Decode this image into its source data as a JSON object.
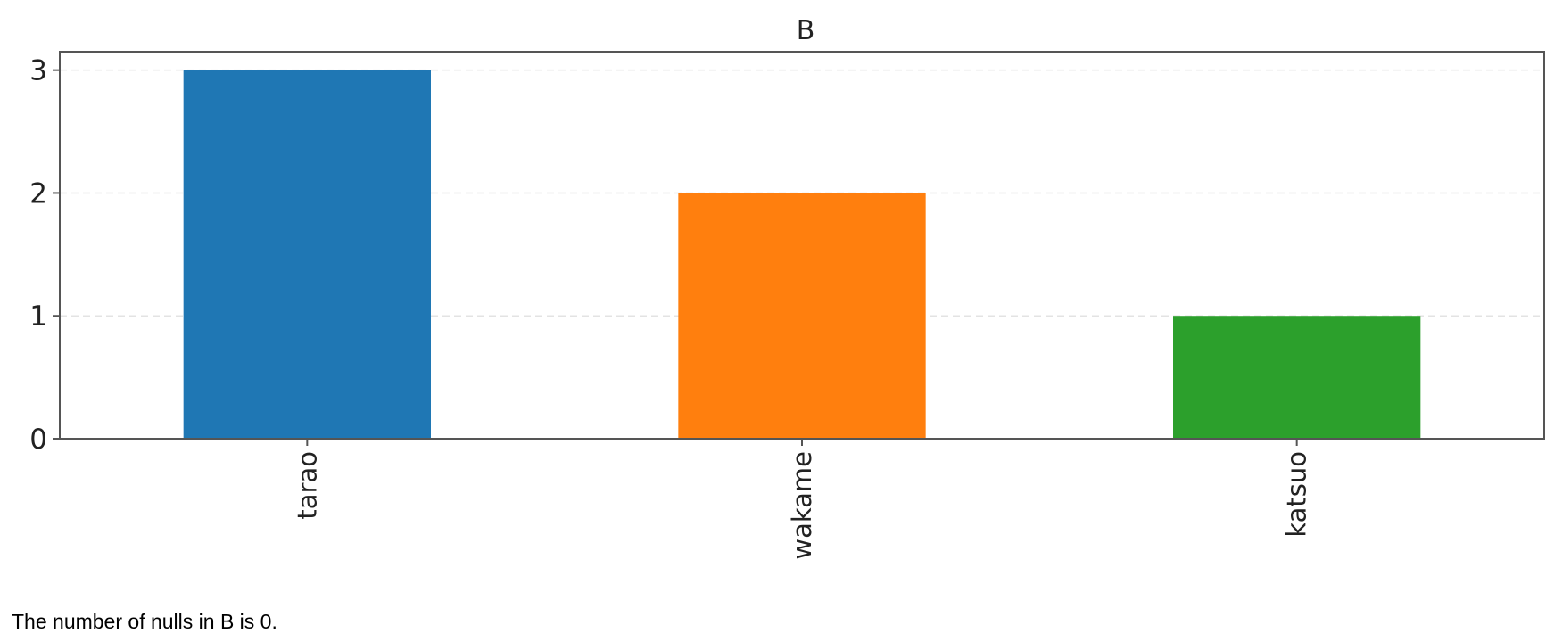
{
  "chart_data": {
    "type": "bar",
    "title": "B",
    "categories": [
      "tarao",
      "wakame",
      "katsuo"
    ],
    "values": [
      3,
      2,
      1
    ],
    "colors": [
      "#1f77b4",
      "#ff7f0e",
      "#2ca02c"
    ],
    "xlabel": "",
    "ylabel": "",
    "ylim": [
      0,
      3.15
    ],
    "yticks": [
      0,
      1,
      2,
      3
    ],
    "grid": "horizontal dashed",
    "xtick_rotation": 90
  },
  "footer": {
    "text": "The number of nulls in B is 0."
  }
}
